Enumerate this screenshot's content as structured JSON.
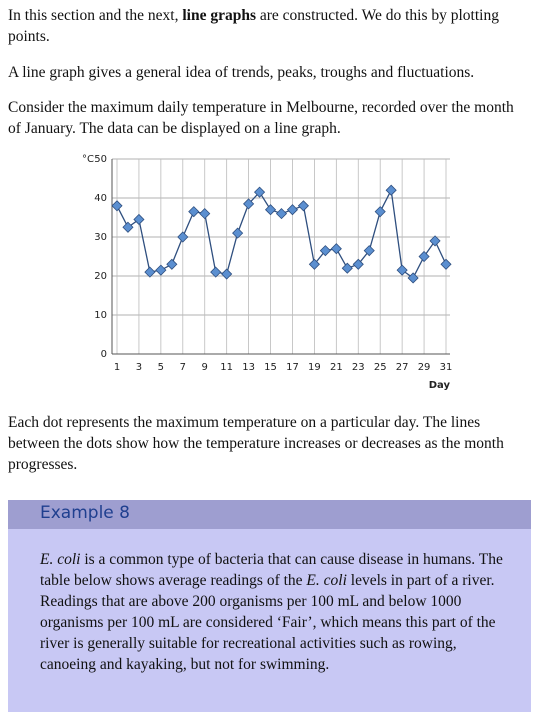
{
  "paragraphs": [
    [
      "In this section and the next, ",
      "line graphs",
      " are constructed. We do this by plotting points."
    ],
    "A line graph gives a general idea of trends, peaks, troughs and fluctuations.",
    "Consider the maximum daily temperature in Melbourne, recorded over the month of January. The data can be displayed on a line graph."
  ],
  "chart_data": {
    "type": "line",
    "y_label": "°C",
    "x_label": "Day",
    "x": [
      1,
      2,
      3,
      4,
      5,
      6,
      7,
      8,
      9,
      10,
      11,
      12,
      13,
      14,
      15,
      16,
      17,
      18,
      19,
      20,
      21,
      22,
      23,
      24,
      25,
      26,
      27,
      28,
      29,
      30,
      31
    ],
    "values": [
      38,
      32.5,
      34.5,
      21,
      21.5,
      23,
      30,
      36.5,
      36,
      21,
      20.5,
      31,
      38.5,
      41.5,
      37,
      36,
      37,
      38,
      23,
      26.5,
      27,
      22,
      23,
      26.5,
      36.5,
      42,
      21.5,
      19.5,
      25,
      29,
      23
    ],
    "color": "#2f4f7f",
    "marker_color": "#5b8fd0",
    "xlim": [
      1,
      31
    ],
    "xticks": [
      1,
      3,
      5,
      7,
      9,
      11,
      13,
      15,
      17,
      19,
      21,
      23,
      25,
      27,
      29,
      31
    ],
    "ylim": [
      0,
      50
    ],
    "yticks": [
      0,
      10,
      20,
      30,
      40,
      50
    ],
    "grid": true
  },
  "after_chart": "Each dot represents the maximum temperature on a particular day. The lines between the dots show how the temperature increases or decreases as the month progresses.",
  "example": {
    "title": "Example 8",
    "body": [
      "E. coli",
      " is a common type of bacteria that can cause disease in humans. The table below shows average readings of the ",
      "E. coli",
      " levels in part of a river. Readings that are above 200 organisms per 100 mL and below 1000 organisms per 100 mL are considered ‘Fair’, which means this part of the river is generally suitable for recreational activities such as rowing, canoeing and kayaking, but not for swimming."
    ]
  }
}
